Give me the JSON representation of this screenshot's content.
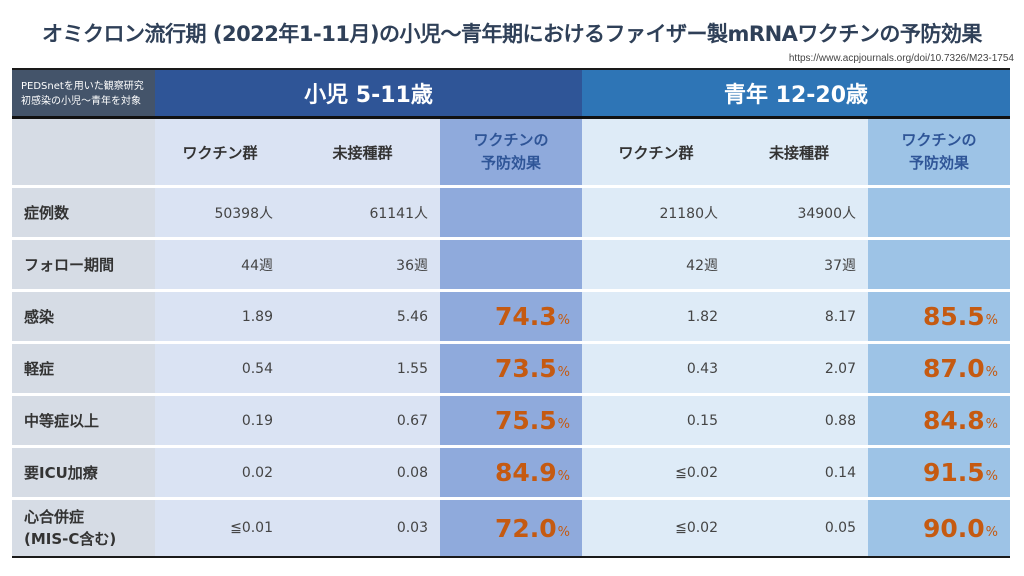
{
  "title": "オミクロン流行期 (2022年1-11月)の小児〜青年期におけるファイザー製mRNAワクチンの予防効果",
  "source": "https://www.acpjournals.org/doi/10.7326/M23-1754",
  "note": [
    "PEDSnetを用いた観察研究",
    "初感染の小児〜青年を対象"
  ],
  "groups": {
    "child": "小児 5-11歳",
    "teen": "青年 12-20歳"
  },
  "columns": {
    "vaccinated": "ワクチン群",
    "unvaccinated": "未接種群",
    "effect_line1": "ワクチンの",
    "effect_line2": "予防効果"
  },
  "percent_sign": "%",
  "colors": {
    "child_band": "#2f5597",
    "teen_band": "#2e75b6",
    "effect_value": "#c55a11",
    "note_band": "#44546a"
  },
  "rows": [
    {
      "label": [
        "症例数"
      ],
      "child": {
        "vac": "50398人",
        "unvac": "61141人",
        "eff": ""
      },
      "teen": {
        "vac": "21180人",
        "unvac": "34900人",
        "eff": ""
      }
    },
    {
      "label": [
        "フォロー期間"
      ],
      "child": {
        "vac": "44週",
        "unvac": "36週",
        "eff": ""
      },
      "teen": {
        "vac": "42週",
        "unvac": "37週",
        "eff": ""
      }
    },
    {
      "label": [
        "感染"
      ],
      "child": {
        "vac": "1.89",
        "unvac": "5.46",
        "eff": "74.3"
      },
      "teen": {
        "vac": "1.82",
        "unvac": "8.17",
        "eff": "85.5"
      }
    },
    {
      "label": [
        "軽症"
      ],
      "child": {
        "vac": "0.54",
        "unvac": "1.55",
        "eff": "73.5"
      },
      "teen": {
        "vac": "0.43",
        "unvac": "2.07",
        "eff": "87.0"
      }
    },
    {
      "label": [
        "中等症以上"
      ],
      "child": {
        "vac": "0.19",
        "unvac": "0.67",
        "eff": "75.5"
      },
      "teen": {
        "vac": "0.15",
        "unvac": "0.88",
        "eff": "84.8"
      }
    },
    {
      "label": [
        "要ICU加療"
      ],
      "child": {
        "vac": "0.02",
        "unvac": "0.08",
        "eff": "84.9"
      },
      "teen": {
        "vac": "≦0.02",
        "unvac": "0.14",
        "eff": "91.5"
      }
    },
    {
      "label": [
        "心合併症",
        "(MIS-C含む)"
      ],
      "child": {
        "vac": "≦0.01",
        "unvac": "0.03",
        "eff": "72.0"
      },
      "teen": {
        "vac": "≦0.02",
        "unvac": "0.05",
        "eff": "90.0"
      }
    }
  ]
}
